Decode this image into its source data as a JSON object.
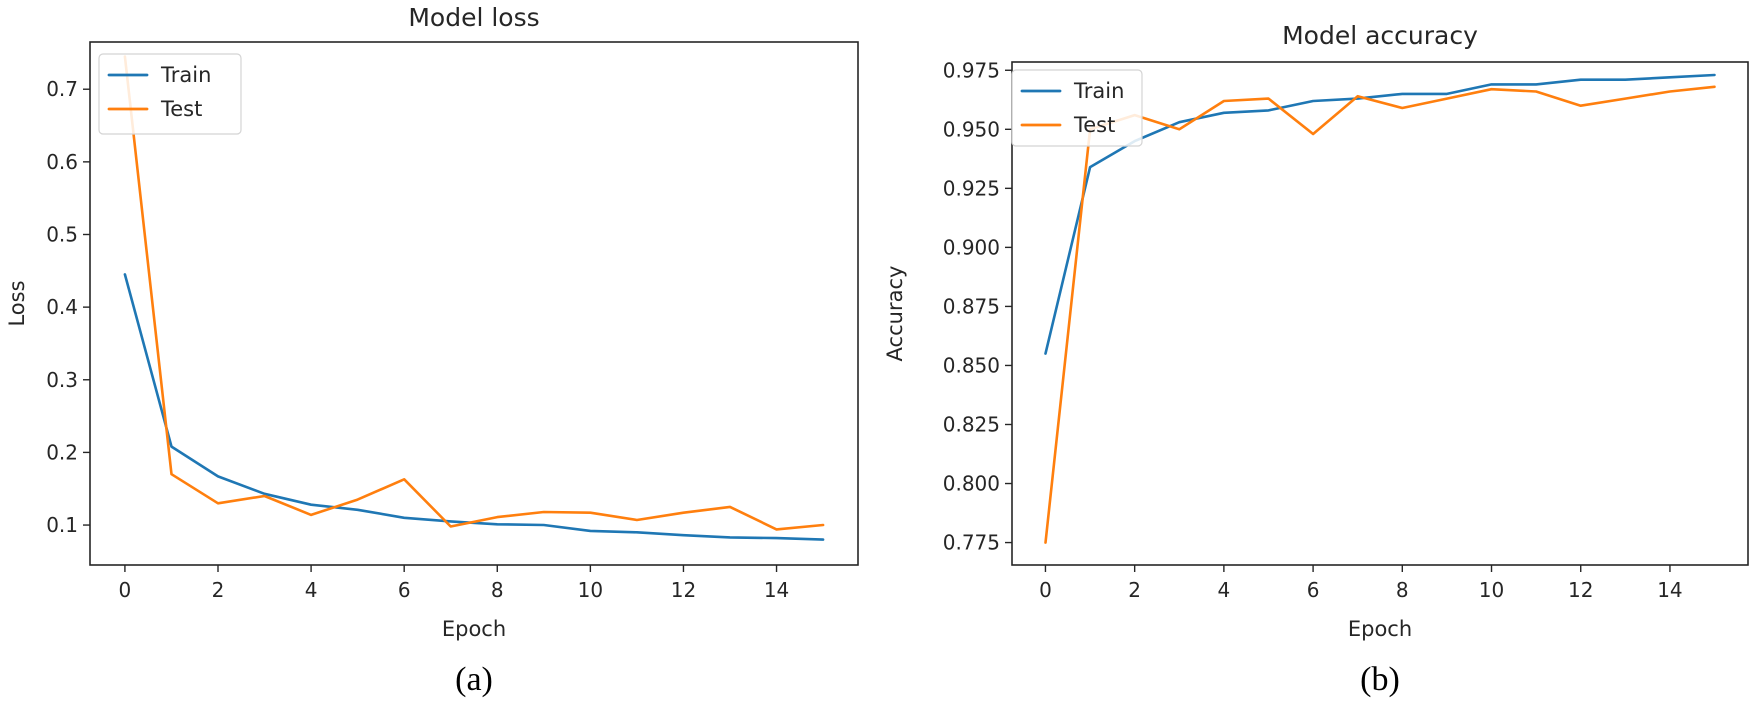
{
  "chart_data": [
    {
      "type": "line",
      "title": "Model loss",
      "xlabel": "Epoch",
      "ylabel": "Loss",
      "caption": "(a)",
      "x": [
        0,
        1,
        2,
        3,
        4,
        5,
        6,
        7,
        8,
        9,
        10,
        11,
        12,
        13,
        14,
        15
      ],
      "xlim": [
        -0.75,
        15.75
      ],
      "ylim": [
        0.045,
        0.765
      ],
      "xticks": [
        0,
        2,
        4,
        6,
        8,
        10,
        12,
        14
      ],
      "yticks": [
        0.1,
        0.2,
        0.3,
        0.4,
        0.5,
        0.6,
        0.7
      ],
      "xtick_labels": [
        "0",
        "2",
        "4",
        "6",
        "8",
        "10",
        "12",
        "14"
      ],
      "ytick_labels": [
        "0.1",
        "0.2",
        "0.3",
        "0.4",
        "0.5",
        "0.6",
        "0.7"
      ],
      "grid": false,
      "legend_position": "top-left",
      "series": [
        {
          "name": "Train",
          "color": "#1f77b4",
          "values": [
            0.445,
            0.208,
            0.167,
            0.143,
            0.128,
            0.121,
            0.11,
            0.105,
            0.101,
            0.1,
            0.092,
            0.09,
            0.086,
            0.083,
            0.082,
            0.08
          ]
        },
        {
          "name": "Test",
          "color": "#ff7f0e",
          "values": [
            0.745,
            0.17,
            0.13,
            0.14,
            0.114,
            0.135,
            0.163,
            0.098,
            0.111,
            0.118,
            0.117,
            0.107,
            0.117,
            0.125,
            0.094,
            0.1
          ]
        }
      ]
    },
    {
      "type": "line",
      "title": "Model accuracy",
      "xlabel": "Epoch",
      "ylabel": "Accuracy",
      "caption": "(b)",
      "x": [
        0,
        1,
        2,
        3,
        4,
        5,
        6,
        7,
        8,
        9,
        10,
        11,
        12,
        13,
        14,
        15
      ],
      "xlim": [
        -0.75,
        15.75
      ],
      "ylim": [
        0.7655,
        0.9785
      ],
      "xticks": [
        0,
        2,
        4,
        6,
        8,
        10,
        12,
        14
      ],
      "yticks": [
        0.775,
        0.8,
        0.825,
        0.85,
        0.875,
        0.9,
        0.925,
        0.95,
        0.975
      ],
      "xtick_labels": [
        "0",
        "2",
        "4",
        "6",
        "8",
        "10",
        "12",
        "14"
      ],
      "ytick_labels": [
        "0.775",
        "0.800",
        "0.825",
        "0.850",
        "0.875",
        "0.900",
        "0.925",
        "0.950",
        "0.975"
      ],
      "grid": false,
      "legend_position": "top-left",
      "series": [
        {
          "name": "Train",
          "color": "#1f77b4",
          "values": [
            0.855,
            0.934,
            0.945,
            0.953,
            0.957,
            0.958,
            0.962,
            0.963,
            0.965,
            0.965,
            0.969,
            0.969,
            0.971,
            0.971,
            0.972,
            0.973
          ]
        },
        {
          "name": "Test",
          "color": "#ff7f0e",
          "values": [
            0.775,
            0.95,
            0.956,
            0.95,
            0.962,
            0.963,
            0.948,
            0.964,
            0.959,
            0.963,
            0.967,
            0.966,
            0.96,
            0.963,
            0.966,
            0.968
          ]
        }
      ]
    }
  ]
}
